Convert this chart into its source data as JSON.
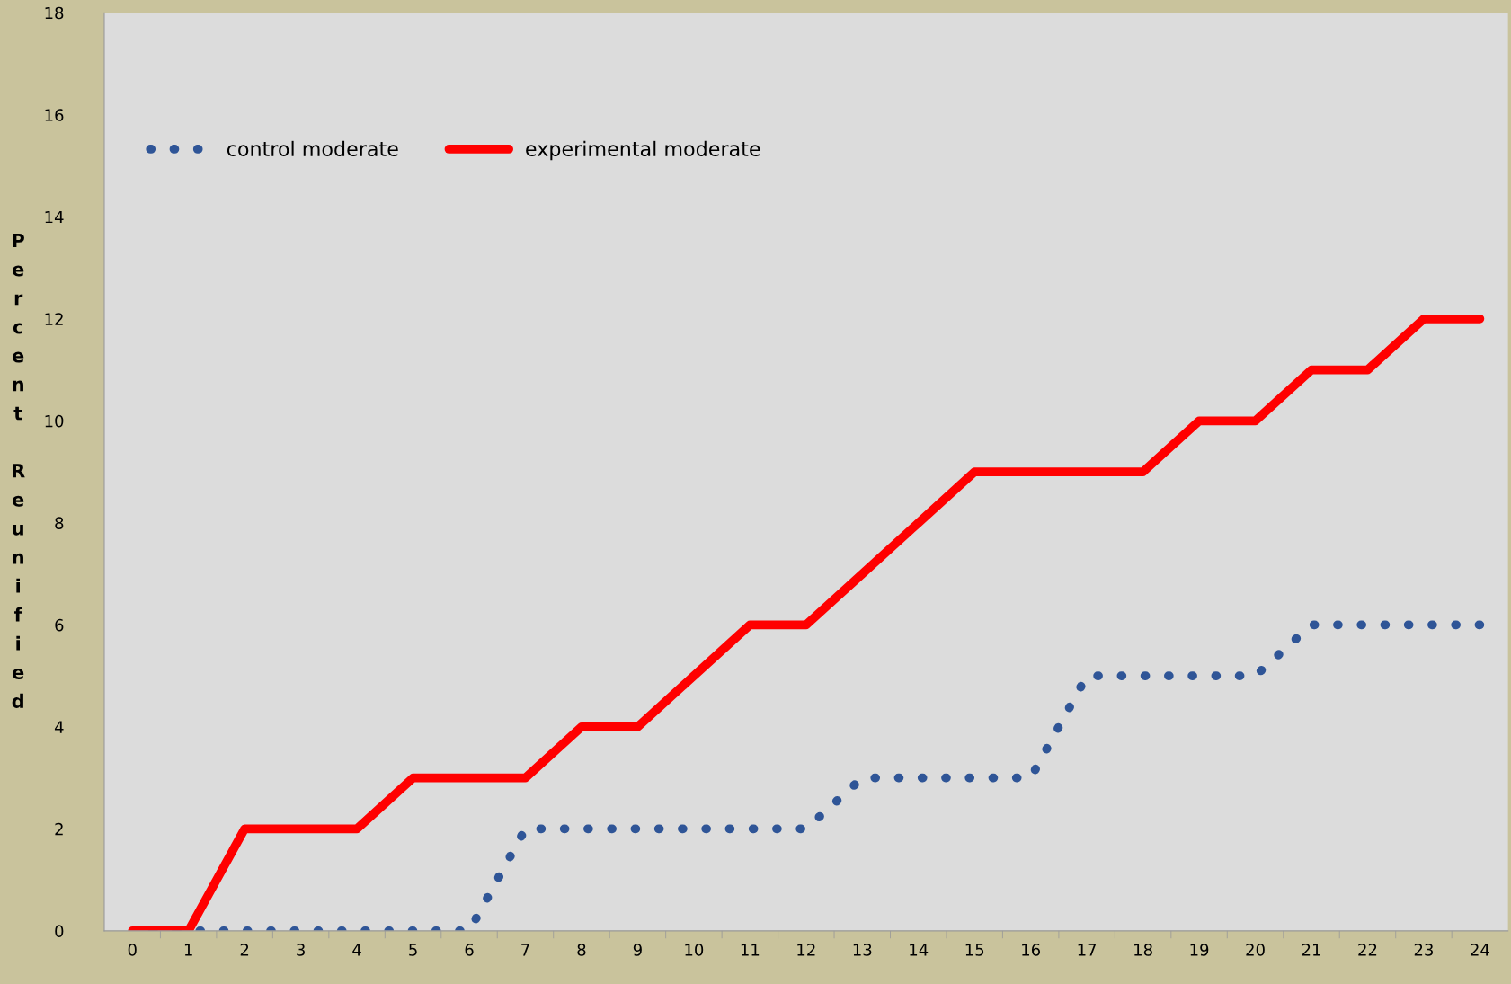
{
  "chart_data": {
    "type": "line",
    "ylabel": "Percent Reunified",
    "categories": [
      "0",
      "1",
      "2",
      "3",
      "4",
      "5",
      "6",
      "7",
      "8",
      "9",
      "10",
      "11",
      "12",
      "13",
      "14",
      "15",
      "16",
      "17",
      "18",
      "19",
      "20",
      "21",
      "22",
      "23",
      "24"
    ],
    "series": [
      {
        "name": "control moderate",
        "color": "#2f5597",
        "line_style": "dotted",
        "values": [
          0,
          0,
          0,
          0,
          0,
          0,
          0,
          2,
          2,
          2,
          2,
          2,
          2,
          3,
          3,
          3,
          3,
          5,
          5,
          5,
          5,
          6,
          6,
          6,
          6
        ]
      },
      {
        "name": "experimental moderate",
        "color": "#ff0000",
        "line_style": "solid",
        "values": [
          0,
          0,
          2,
          2,
          2,
          3,
          3,
          3,
          4,
          4,
          5,
          6,
          6,
          7,
          8,
          9,
          9,
          9,
          9,
          10,
          10,
          11,
          11,
          12,
          12
        ]
      }
    ],
    "ylim": [
      0,
      18
    ],
    "yticks": [
      0,
      2,
      4,
      6,
      8,
      10,
      12,
      14,
      16,
      18
    ],
    "grid": false,
    "legend": "top left"
  }
}
